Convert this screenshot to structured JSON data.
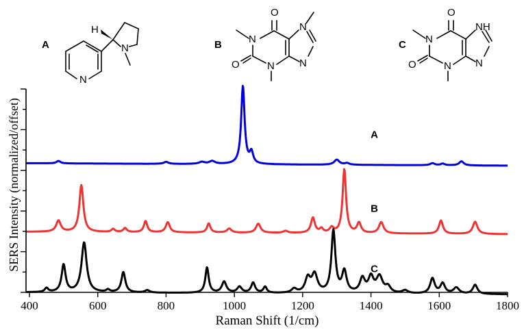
{
  "structures": [
    {
      "label": "A",
      "atoms": {
        "h": "H",
        "n_ring": "N",
        "n_pyr": "N"
      }
    },
    {
      "label": "B",
      "atoms": {
        "o1": "O",
        "o2": "O",
        "n1": "N",
        "n3": "N",
        "n7": "N",
        "n9": "N"
      }
    },
    {
      "label": "C",
      "atoms": {
        "o1": "O",
        "o2": "O",
        "n1": "N",
        "n3": "N",
        "nh": "NH",
        "n9": "N"
      }
    }
  ],
  "chart_data": {
    "type": "line",
    "xlabel": "Raman Shift (1/cm)",
    "ylabel": "SERS Intensity (normalized/offset)",
    "xlim": [
      390,
      1800
    ],
    "ylim": [
      0,
      10
    ],
    "xticks": [
      400,
      600,
      800,
      1000,
      1200,
      1400,
      1600,
      1800
    ],
    "y_ticks_count": 11,
    "grid": false,
    "series": [
      {
        "name": "A",
        "color": "#0000dd",
        "base": 6.35,
        "slope": -0.12,
        "peaks": [
          [
            485,
            0.12,
            7
          ],
          [
            800,
            0.1,
            8
          ],
          [
            905,
            0.1,
            10
          ],
          [
            935,
            0.14,
            10
          ],
          [
            1025,
            3.85,
            6
          ],
          [
            1050,
            0.55,
            6
          ],
          [
            1300,
            0.25,
            9
          ],
          [
            1330,
            0.08,
            8
          ],
          [
            1580,
            0.1,
            8
          ],
          [
            1610,
            0.08,
            7
          ],
          [
            1665,
            0.2,
            8
          ]
        ]
      },
      {
        "name": "B",
        "color": "#ee3333",
        "base": 2.98,
        "slope": -0.12,
        "peaks": [
          [
            485,
            0.55,
            8
          ],
          [
            552,
            2.3,
            7
          ],
          [
            645,
            0.15,
            6
          ],
          [
            680,
            0.2,
            6
          ],
          [
            740,
            0.55,
            6
          ],
          [
            805,
            0.5,
            7
          ],
          [
            925,
            0.45,
            6
          ],
          [
            985,
            0.2,
            8
          ],
          [
            1070,
            0.45,
            8
          ],
          [
            1150,
            0.1,
            8
          ],
          [
            1230,
            0.75,
            7
          ],
          [
            1255,
            0.2,
            6
          ],
          [
            1285,
            0.25,
            7
          ],
          [
            1322,
            3.15,
            6
          ],
          [
            1365,
            0.5,
            7
          ],
          [
            1430,
            0.55,
            8
          ],
          [
            1605,
            0.65,
            7
          ],
          [
            1705,
            0.6,
            8
          ]
        ]
      },
      {
        "name": "C",
        "color": "#000000",
        "base": 0.0,
        "slope": -0.1,
        "peaks": [
          [
            450,
            0.2,
            6
          ],
          [
            500,
            1.35,
            7
          ],
          [
            560,
            2.45,
            9
          ],
          [
            630,
            0.12,
            6
          ],
          [
            675,
            1.0,
            7
          ],
          [
            745,
            0.12,
            8
          ],
          [
            920,
            1.25,
            6
          ],
          [
            970,
            0.55,
            8
          ],
          [
            1015,
            0.3,
            8
          ],
          [
            1055,
            0.5,
            7
          ],
          [
            1090,
            0.3,
            6
          ],
          [
            1175,
            0.2,
            9
          ],
          [
            1215,
            0.7,
            9
          ],
          [
            1235,
            0.9,
            10
          ],
          [
            1290,
            3.05,
            7
          ],
          [
            1322,
            1.05,
            8
          ],
          [
            1375,
            0.7,
            9
          ],
          [
            1400,
            0.75,
            9
          ],
          [
            1425,
            0.8,
            11
          ],
          [
            1450,
            0.3,
            9
          ],
          [
            1500,
            0.15,
            10
          ],
          [
            1580,
            0.75,
            8
          ],
          [
            1610,
            0.5,
            8
          ],
          [
            1650,
            0.3,
            10
          ],
          [
            1705,
            0.45,
            8
          ]
        ]
      }
    ],
    "annotations": [
      {
        "text": "A",
        "x": 1410,
        "y": 7.6
      },
      {
        "text": "B",
        "x": 1410,
        "y": 3.95
      },
      {
        "text": "C",
        "x": 1410,
        "y": 1.0
      }
    ]
  }
}
